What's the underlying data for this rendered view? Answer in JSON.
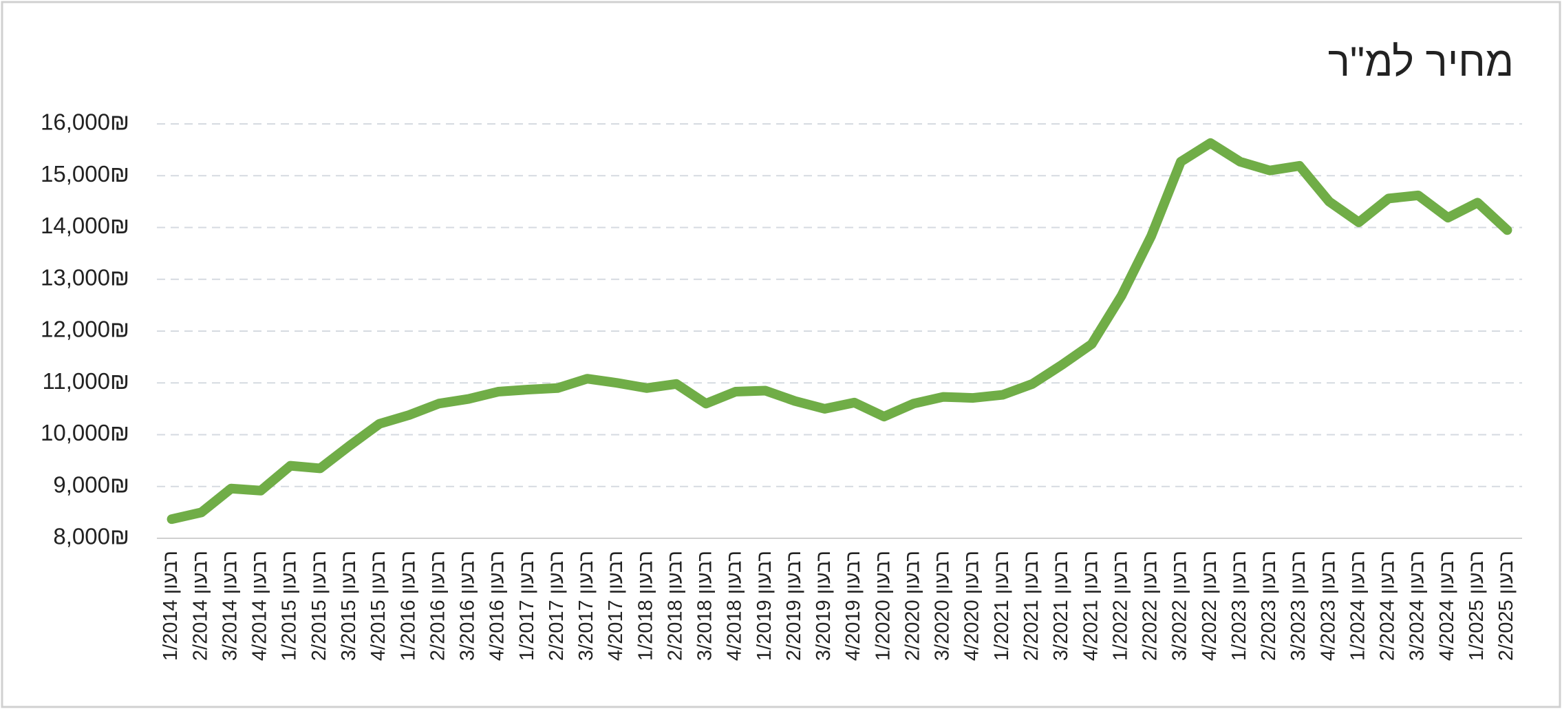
{
  "chart_data": {
    "type": "line",
    "title": "מחיר למ\"ר",
    "categories": [
      "רבעון 1/2014",
      "רבעון 2/2014",
      "רבעון 3/2014",
      "רבעון 4/2014",
      "רבעון 1/2015",
      "רבעון 2/2015",
      "רבעון 3/2015",
      "רבעון 4/2015",
      "רבעון 1/2016",
      "רבעון 2/2016",
      "רבעון 3/2016",
      "רבעון 4/2016",
      "רבעון 1/2017",
      "רבעון 2/2017",
      "רבעון 3/2017",
      "רבעון 4/2017",
      "רבעון 1/2018",
      "רבעון 2/2018",
      "רבעון 3/2018",
      "רבעון 4/2018",
      "רבעון 1/2019",
      "רבעון 2/2019",
      "רבעון 3/2019",
      "רבעון 4/2019",
      "רבעון 1/2020",
      "רבעון 2/2020",
      "רבעון 3/2020",
      "רבעון 4/2020",
      "רבעון 1/2021",
      "רבעון 2/2021",
      "רבעון 3/2021",
      "רבעון 4/2021",
      "רבעון 1/2022",
      "רבעון 2/2022",
      "רבעון 3/2022",
      "רבעון 4/2022",
      "רבעון 1/2023",
      "רבעון 2/2023",
      "רבעון 3/2023",
      "רבעון 4/2023",
      "רבעון 1/2024",
      "רבעון 2/2024",
      "רבעון 3/2024",
      "רבעון 4/2024",
      "רבעון 1/2025",
      "רבעון 2/2025"
    ],
    "values": [
      8370,
      8500,
      8960,
      8920,
      9400,
      9350,
      9790,
      10210,
      10380,
      10600,
      10690,
      10830,
      10870,
      10900,
      11080,
      11000,
      10900,
      10980,
      10600,
      10830,
      10850,
      10650,
      10500,
      10620,
      10350,
      10600,
      10730,
      10710,
      10770,
      10980,
      11350,
      11750,
      12680,
      13830,
      15270,
      15630,
      15270,
      15100,
      15190,
      14500,
      14100,
      14560,
      14620,
      14190,
      14480,
      13950
    ],
    "color": "#70ad47",
    "ylim": [
      8000,
      16000
    ],
    "yticks": [
      {
        "value": 8000,
        "label": "8,000₪"
      },
      {
        "value": 9000,
        "label": "9,000₪"
      },
      {
        "value": 10000,
        "label": "10,000₪"
      },
      {
        "value": 11000,
        "label": "11,000₪"
      },
      {
        "value": 12000,
        "label": "12,000₪"
      },
      {
        "value": 13000,
        "label": "13,000₪"
      },
      {
        "value": 14000,
        "label": "14,000₪"
      },
      {
        "value": 15000,
        "label": "15,000₪"
      },
      {
        "value": 16000,
        "label": "16,000₪"
      }
    ],
    "grid": true
  }
}
